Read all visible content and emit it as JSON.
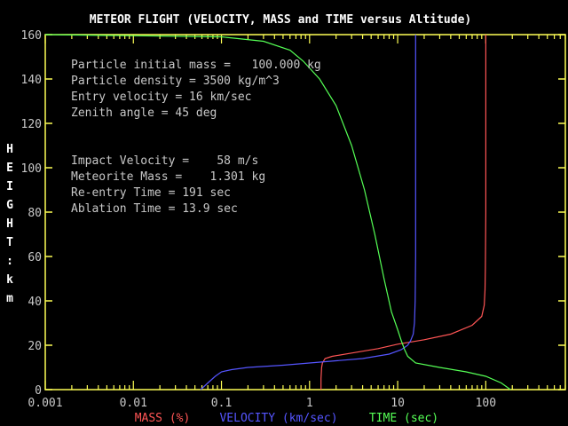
{
  "chart_data": {
    "type": "line",
    "title": "METEOR FLIGHT  (VELOCITY, MASS and TIME versus  Altitude)",
    "ylabel": "HEIGHT : km",
    "x_scale": "log",
    "xlim": [
      0.001,
      800
    ],
    "ylim": [
      0,
      160
    ],
    "x_ticks": [
      {
        "value": 0.001,
        "label": "0.001"
      },
      {
        "value": 0.01,
        "label": "0.01"
      },
      {
        "value": 0.1,
        "label": "0.1"
      },
      {
        "value": 1,
        "label": "1"
      },
      {
        "value": 10,
        "label": "10"
      },
      {
        "value": 100,
        "label": "100"
      }
    ],
    "y_ticks": [
      0,
      20,
      40,
      60,
      80,
      100,
      120,
      140,
      160
    ],
    "info_lines": [
      "Particle initial mass =   100.000 kg",
      "Particle density = 3500 kg/m^3",
      "Entry velocity = 16 km/sec",
      "Zenith angle = 45 deg",
      "",
      "",
      "Impact Velocity =    58 m/s",
      "Meteorite Mass =    1.301 kg",
      "Re-entry Time = 191 sec",
      "Ablation Time = 13.9 sec"
    ],
    "series": [
      {
        "name": "MASS (%)",
        "color": "#ff5555",
        "points": [
          [
            1.35,
            0
          ],
          [
            1.35,
            5
          ],
          [
            1.37,
            10
          ],
          [
            1.4,
            12
          ],
          [
            1.5,
            14
          ],
          [
            1.8,
            15
          ],
          [
            3,
            16.5
          ],
          [
            6,
            18.5
          ],
          [
            10,
            20.5
          ],
          [
            20,
            22.5
          ],
          [
            40,
            25
          ],
          [
            70,
            29
          ],
          [
            90,
            33
          ],
          [
            96,
            38
          ],
          [
            98,
            45
          ],
          [
            99,
            55
          ],
          [
            100,
            80
          ],
          [
            100,
            120
          ],
          [
            100,
            160
          ]
        ]
      },
      {
        "name": "VELOCITY (km/sec)",
        "color": "#5555ff",
        "points": [
          [
            0.058,
            0
          ],
          [
            0.07,
            3
          ],
          [
            0.085,
            6
          ],
          [
            0.1,
            8
          ],
          [
            0.13,
            9
          ],
          [
            0.2,
            10
          ],
          [
            0.5,
            11
          ],
          [
            1,
            12
          ],
          [
            2,
            13
          ],
          [
            4,
            14
          ],
          [
            8,
            16
          ],
          [
            11,
            18
          ],
          [
            13,
            20
          ],
          [
            14,
            22
          ],
          [
            15,
            25
          ],
          [
            15.5,
            30
          ],
          [
            15.8,
            40
          ],
          [
            16,
            60
          ],
          [
            16,
            90
          ],
          [
            16,
            160
          ]
        ]
      },
      {
        "name": "TIME (sec)",
        "color": "#55ff55",
        "points": [
          [
            0.001,
            160
          ],
          [
            0.1,
            159
          ],
          [
            0.3,
            157
          ],
          [
            0.6,
            153
          ],
          [
            0.85,
            148
          ],
          [
            1.3,
            140
          ],
          [
            2,
            128
          ],
          [
            3,
            110
          ],
          [
            4.2,
            90
          ],
          [
            5.5,
            70
          ],
          [
            7,
            50
          ],
          [
            8.5,
            35
          ],
          [
            10,
            27
          ],
          [
            11,
            22
          ],
          [
            12,
            18
          ],
          [
            13,
            15
          ],
          [
            16,
            12
          ],
          [
            30,
            10
          ],
          [
            60,
            8
          ],
          [
            100,
            6
          ],
          [
            150,
            3
          ],
          [
            191,
            0
          ]
        ]
      }
    ]
  }
}
